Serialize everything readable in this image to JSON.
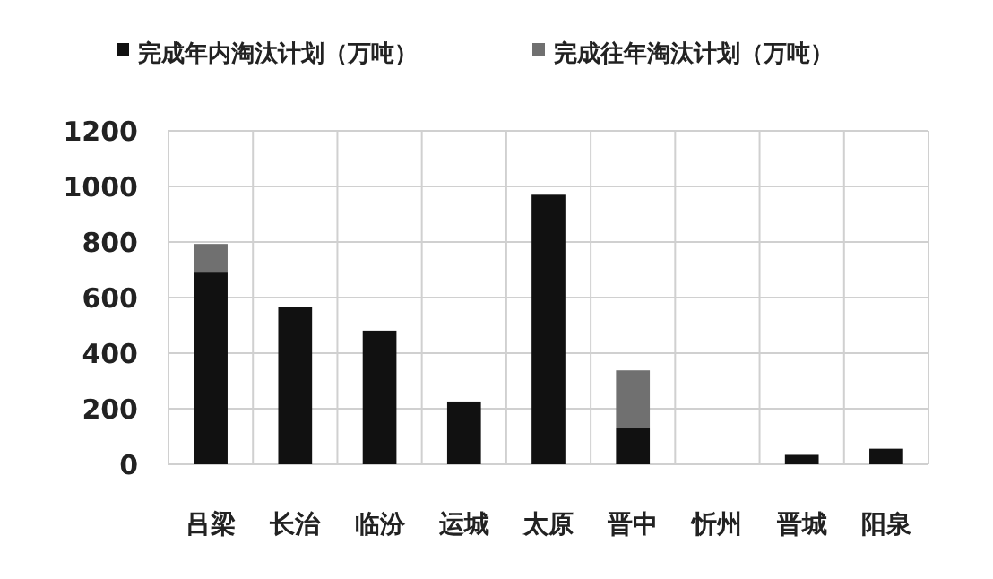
{
  "chart_data": {
    "type": "bar",
    "stacked": true,
    "categories": [
      "吕梁",
      "长治",
      "临汾",
      "运城",
      "太原",
      "晋中",
      "忻州",
      "晋城",
      "阳泉"
    ],
    "series": [
      {
        "name": "完成年内淘汰计划（万吨）",
        "color": "#111111",
        "values": [
          690,
          565,
          481,
          226,
          970,
          129,
          0,
          34,
          56
        ]
      },
      {
        "name": "完成往年淘汰计划（万吨）",
        "color": "#707070",
        "values": [
          103,
          0,
          0,
          0,
          0,
          209,
          0,
          0,
          0
        ]
      }
    ],
    "ylim": [
      0,
      1200
    ],
    "yticks": [
      0,
      200,
      400,
      600,
      800,
      1000,
      1200
    ],
    "grid": true,
    "legend": "top"
  }
}
